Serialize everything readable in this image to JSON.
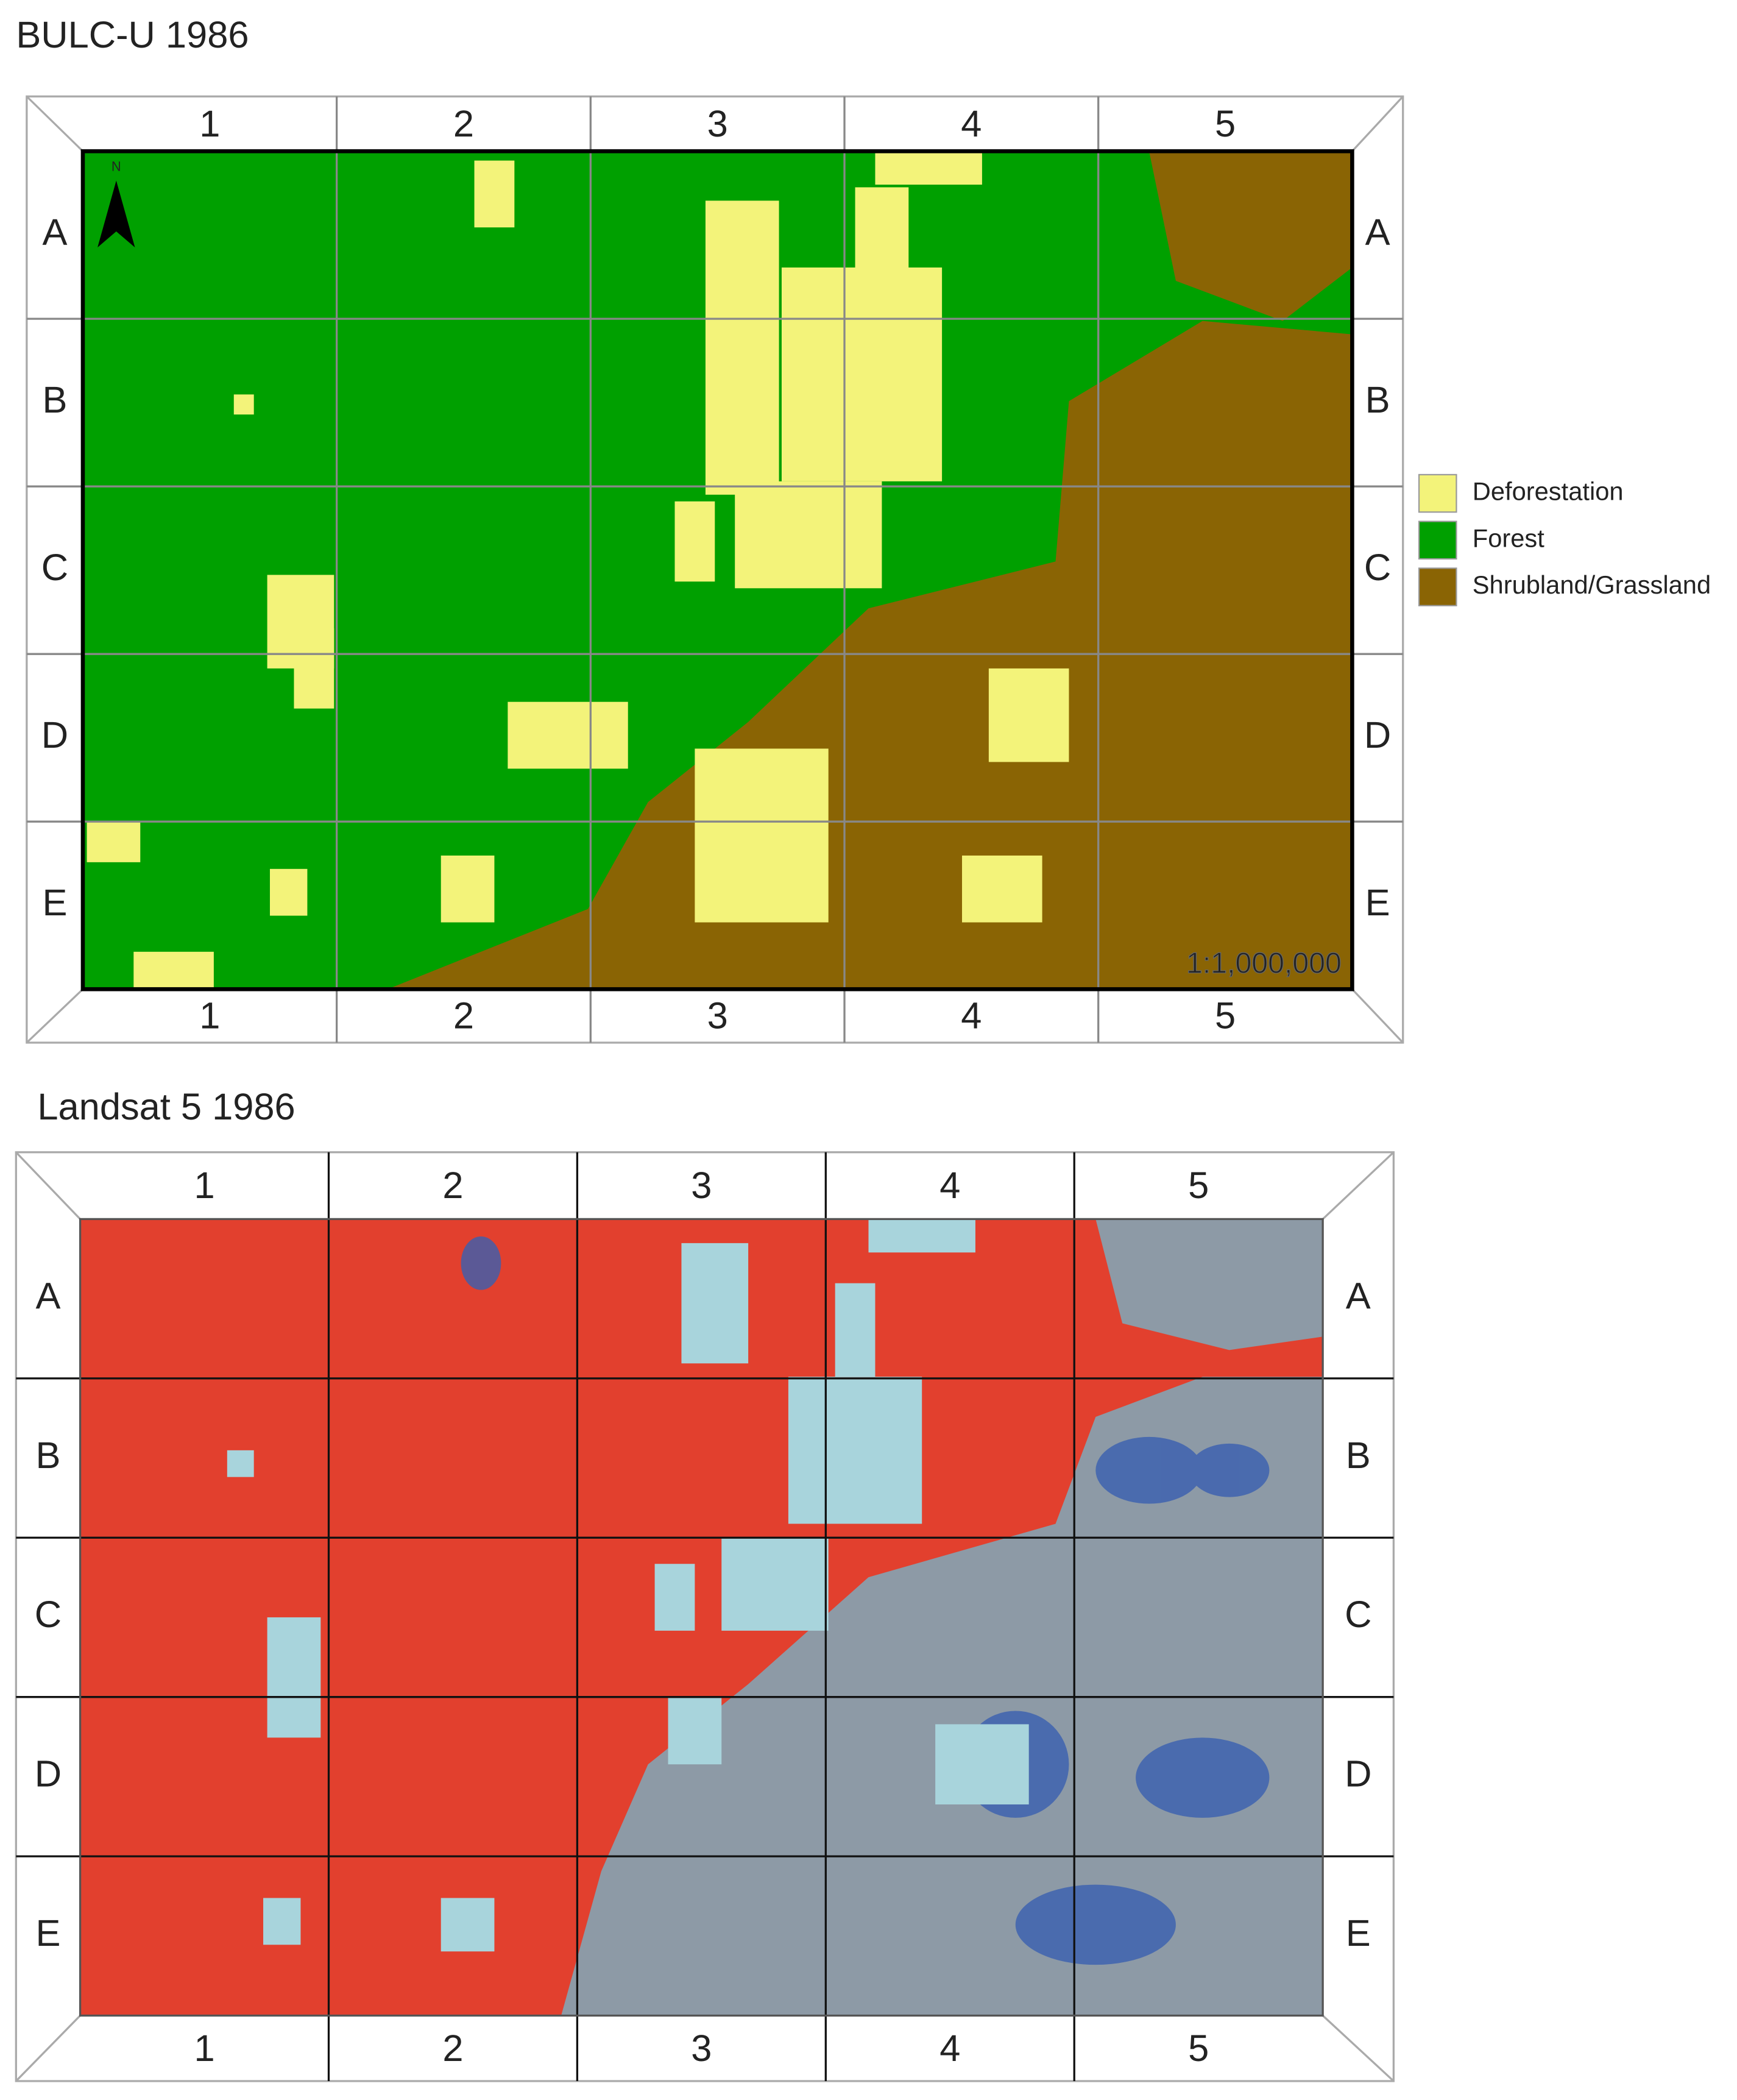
{
  "maps": [
    {
      "title": "BULC-U 1986",
      "columns": [
        "1",
        "2",
        "3",
        "4",
        "5"
      ],
      "rows": [
        "A",
        "B",
        "C",
        "D",
        "E"
      ],
      "north": "N",
      "scale": "1:1,000,000"
    },
    {
      "title": "Landsat 5 1986",
      "columns": [
        "1",
        "2",
        "3",
        "4",
        "5"
      ],
      "rows": [
        "A",
        "B",
        "C",
        "D",
        "E"
      ]
    }
  ],
  "legend": [
    {
      "label": "Deforestation",
      "color": "#f3f37a"
    },
    {
      "label": "Forest",
      "color": "#00a000"
    },
    {
      "label": "Shrubland/Grassland",
      "color": "#8a6404"
    }
  ]
}
